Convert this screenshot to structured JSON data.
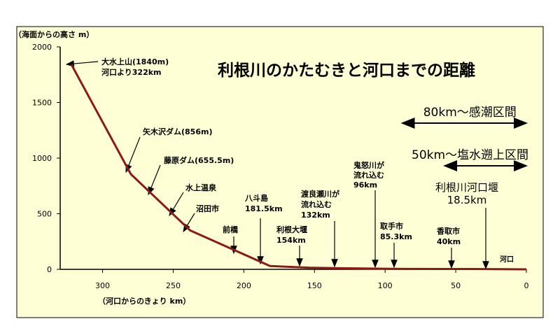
{
  "chart_data": {
    "type": "line",
    "title": "利根川のかたむきと河口までの距離",
    "xlabel": "（河口からのきょり km）",
    "ylabel": "（海面からの高さ m）",
    "xlim": [
      330,
      0
    ],
    "ylim": [
      0,
      2000
    ],
    "x_ticks": [
      300,
      250,
      200,
      150,
      100,
      50,
      0
    ],
    "y_ticks": [
      0,
      500,
      1000,
      1500,
      2000
    ],
    "grid": false,
    "colors": {
      "background": "#ffffd5",
      "line": "#8b1a1a",
      "accent": "#d0222a"
    },
    "series": [
      {
        "x": [
          322,
          280,
          238,
          181.5,
          154,
          132,
          96,
          85.3,
          40,
          18.5,
          0
        ],
        "values": [
          1840,
          856,
          350,
          30,
          15,
          10,
          5,
          4,
          3,
          2,
          0
        ]
      }
    ],
    "annotations": [
      {
        "lines": [
          "大水上山(1840m)",
          "河口より322km"
        ]
      },
      {
        "lines": [
          "矢木沢ダム(856m)"
        ]
      },
      {
        "lines": [
          "藤原ダム(655.5m)"
        ]
      },
      {
        "lines": [
          "水上温泉"
        ]
      },
      {
        "lines": [
          "沼田市"
        ]
      },
      {
        "lines": [
          "前橋"
        ]
      },
      {
        "lines": [
          "八斗島",
          "181.5km"
        ]
      },
      {
        "lines": [
          "利根大堰",
          "154km"
        ]
      },
      {
        "lines": [
          "渡良瀬川が",
          "流れ込む",
          "132km"
        ]
      },
      {
        "lines": [
          "鬼怒川が",
          "流れ込む",
          "96km"
        ]
      },
      {
        "lines": [
          "取手市",
          "85.3km"
        ]
      },
      {
        "lines": [
          "香取市",
          "40km"
        ]
      },
      {
        "lines": [
          "河口"
        ]
      },
      {
        "lines": [
          "利根川河口堰",
          "18.5km"
        ]
      }
    ],
    "ranges": [
      {
        "label": "80km～感潮区間",
        "from": 80,
        "to": 0
      },
      {
        "label": "50km～塩水遡上区間",
        "from": 50,
        "to": 0
      }
    ]
  }
}
